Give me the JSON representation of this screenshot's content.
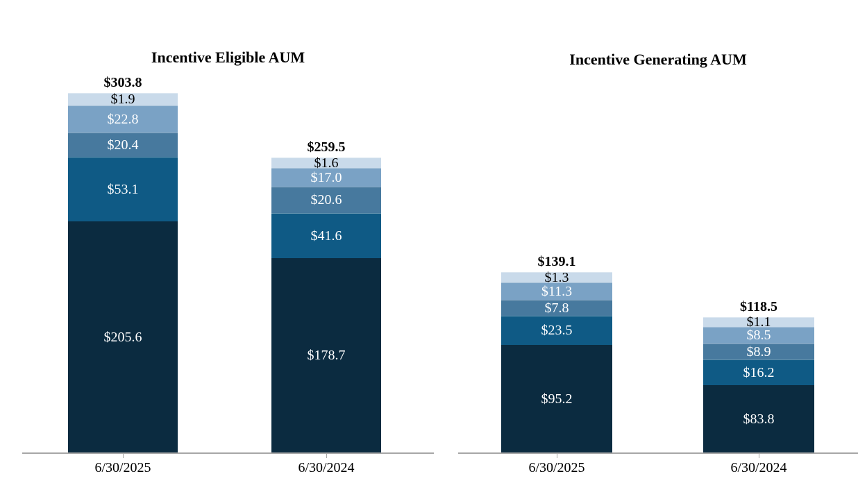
{
  "page": {
    "background": "#ffffff",
    "text_color": "#000000"
  },
  "axis": {
    "line_color": "#a6a6a6"
  },
  "palette": {
    "segment_colors_bottom_to_top": [
      "#0b2b40",
      "#0f5a85",
      "#47799e",
      "#7aa2c5",
      "#c9daea"
    ],
    "label_on_dark_segments": "#ffffff",
    "label_on_lightest_segment": "#000000",
    "total_label_color": "#000000"
  },
  "chart_data": [
    {
      "type": "bar",
      "stacked": true,
      "title": "Incentive Eligible AUM",
      "categories": [
        "6/30/2025",
        "6/30/2024"
      ],
      "series": [
        {
          "name": "tier-1-bottom",
          "color": "#0b2b40",
          "values": [
            205.6,
            178.7
          ]
        },
        {
          "name": "tier-2",
          "color": "#0f5a85",
          "values": [
            53.1,
            41.6
          ]
        },
        {
          "name": "tier-3",
          "color": "#47799e",
          "values": [
            20.4,
            20.6
          ]
        },
        {
          "name": "tier-4",
          "color": "#7aa2c5",
          "values": [
            22.8,
            17.0
          ]
        },
        {
          "name": "tier-5-top",
          "color": "#c9daea",
          "values": [
            1.9,
            1.6
          ]
        }
      ],
      "totals": [
        303.8,
        259.5
      ],
      "value_prefix": "$",
      "value_decimals": 1,
      "legend": false,
      "grid": false,
      "value_labels": "inside segments",
      "total_labels": "above bars"
    },
    {
      "type": "bar",
      "stacked": true,
      "title": "Incentive Generating AUM",
      "categories": [
        "6/30/2025",
        "6/30/2024"
      ],
      "series": [
        {
          "name": "tier-1-bottom",
          "color": "#0b2b40",
          "values": [
            95.2,
            83.8
          ]
        },
        {
          "name": "tier-2",
          "color": "#0f5a85",
          "values": [
            23.5,
            16.2
          ]
        },
        {
          "name": "tier-3",
          "color": "#47799e",
          "values": [
            7.8,
            8.9
          ]
        },
        {
          "name": "tier-4",
          "color": "#7aa2c5",
          "values": [
            11.3,
            8.5
          ]
        },
        {
          "name": "tier-5-top",
          "color": "#c9daea",
          "values": [
            1.3,
            1.1
          ]
        }
      ],
      "totals": [
        139.1,
        118.5
      ],
      "value_prefix": "$",
      "value_decimals": 1,
      "legend": false,
      "grid": false,
      "value_labels": "inside segments",
      "total_labels": "above bars"
    }
  ]
}
